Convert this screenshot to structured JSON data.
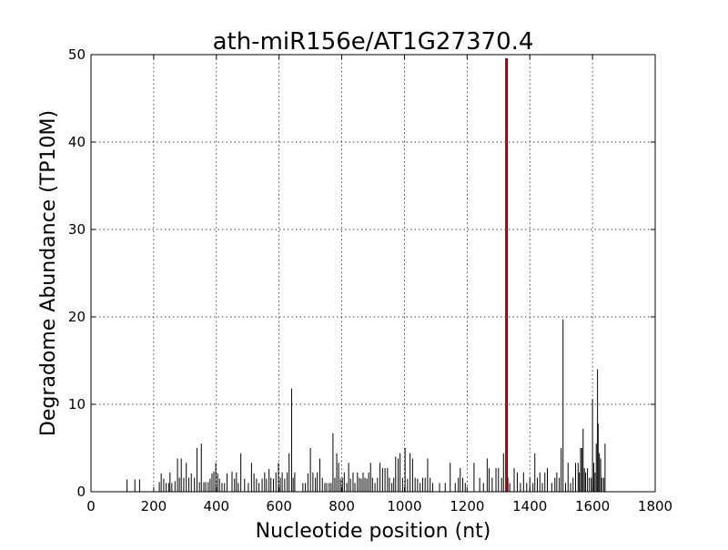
{
  "chart_data": {
    "type": "bar",
    "title": "ath-miR156e/AT1G27370.4",
    "xlabel": "Nucleotide position (nt)",
    "ylabel": "Degradome Abundance (TP10M)",
    "xlim": [
      0,
      1800
    ],
    "ylim": [
      0,
      50
    ],
    "xticks": [
      0,
      200,
      400,
      600,
      800,
      1000,
      1200,
      1400,
      1600,
      1800
    ],
    "yticks": [
      0,
      10,
      20,
      30,
      40,
      50
    ],
    "grid": true,
    "grid_style": "dotted",
    "colors": {
      "bars": "#000000",
      "target_site": "#cc0000",
      "frame": "#000000",
      "grid": "#000000"
    },
    "target_site": {
      "x": 1324,
      "value": 49.6
    },
    "series": [
      {
        "x": [
          115,
          140,
          155,
          218,
          224,
          232,
          240,
          248,
          252,
          258,
          268,
          276,
          282,
          288,
          296,
          304,
          312,
          320,
          330,
          338,
          346,
          352,
          360,
          366,
          374,
          380,
          386,
          392,
          398,
          404,
          410,
          418,
          426,
          434,
          450,
          458,
          464,
          470,
          478,
          490,
          502,
          512,
          520,
          528,
          536,
          546,
          554,
          560,
          568,
          574,
          582,
          590,
          598,
          604,
          610,
          618,
          626,
          632,
          640,
          645,
          650,
          676,
          684,
          692,
          700,
          708,
          716,
          722,
          730,
          738,
          746,
          752,
          760,
          766,
          772,
          778,
          784,
          790,
          796,
          802,
          808,
          816,
          822,
          828,
          836,
          842,
          850,
          856,
          862,
          868,
          874,
          880,
          886,
          892,
          898,
          906,
          914,
          922,
          930,
          938,
          946,
          952,
          960,
          966,
          972,
          980,
          986,
          994,
          1002,
          1010,
          1018,
          1026,
          1034,
          1042,
          1050,
          1058,
          1066,
          1074,
          1082,
          1090,
          1112,
          1130,
          1146,
          1162,
          1172,
          1178,
          1186,
          1194,
          1222,
          1240,
          1252,
          1264,
          1270,
          1280,
          1292,
          1300,
          1310,
          1316,
          1330,
          1336,
          1350,
          1360,
          1370,
          1380,
          1390,
          1400,
          1410,
          1416,
          1424,
          1432,
          1440,
          1448,
          1456,
          1470,
          1480,
          1486,
          1494,
          1500,
          1506,
          1514,
          1522,
          1530,
          1538,
          1546,
          1554,
          1558,
          1562,
          1566,
          1570,
          1574,
          1578,
          1584,
          1590,
          1596,
          1600,
          1604,
          1608,
          1612,
          1616,
          1618,
          1622,
          1626,
          1630,
          1636,
          1640
        ],
        "values": [
          1.4,
          1.4,
          1.4,
          1.1,
          2.1,
          1.5,
          1.0,
          1.0,
          2.2,
          1.0,
          1.2,
          3.8,
          1.6,
          3.8,
          1.6,
          3.3,
          1.6,
          2.1,
          1.6,
          5.0,
          1.1,
          5.5,
          1.1,
          1.1,
          1.1,
          1.5,
          2.1,
          2.3,
          3.3,
          2.1,
          1.5,
          1.0,
          1.0,
          2.1,
          2.3,
          1.5,
          2.2,
          1.0,
          4.4,
          1.5,
          1.0,
          3.3,
          2.1,
          1.5,
          1.0,
          1.5,
          2.2,
          1.5,
          2.6,
          1.6,
          1.5,
          2.2,
          3.3,
          1.6,
          2.2,
          1.5,
          2.2,
          4.4,
          11.8,
          1.6,
          2.2,
          1.0,
          1.0,
          2.1,
          5.0,
          2.2,
          1.6,
          2.2,
          3.8,
          1.6,
          1.0,
          1.0,
          1.0,
          1.0,
          6.7,
          1.6,
          4.4,
          3.3,
          1.5,
          1.6,
          2.2,
          1.0,
          3.3,
          1.5,
          2.2,
          1.0,
          2.2,
          1.6,
          1.5,
          2.2,
          1.6,
          1.5,
          2.2,
          3.3,
          1.6,
          1.0,
          1.6,
          3.3,
          2.7,
          2.7,
          2.7,
          1.6,
          1.0,
          1.6,
          4.0,
          3.8,
          4.4,
          1.6,
          5.0,
          1.5,
          4.4,
          3.8,
          1.6,
          1.5,
          1.0,
          1.6,
          1.6,
          3.8,
          1.6,
          1.0,
          1.0,
          1.0,
          3.3,
          1.0,
          1.6,
          2.7,
          1.6,
          1.0,
          3.3,
          1.6,
          1.0,
          3.8,
          2.7,
          1.6,
          2.7,
          2.7,
          1.6,
          4.4,
          1.6,
          1.0,
          2.7,
          2.2,
          1.0,
          2.2,
          1.0,
          1.6,
          1.0,
          4.4,
          1.6,
          2.2,
          1.0,
          2.2,
          2.7,
          1.0,
          1.6,
          2.2,
          1.6,
          5.0,
          19.7,
          1.0,
          3.3,
          1.0,
          1.6,
          3.3,
          3.3,
          2.2,
          5.0,
          5.0,
          7.2,
          2.7,
          2.2,
          2.7,
          1.6,
          1.6,
          10.6,
          3.3,
          2.2,
          5.5,
          14.0,
          7.8,
          4.4,
          3.8,
          1.6,
          1.6,
          5.5
        ]
      }
    ]
  }
}
